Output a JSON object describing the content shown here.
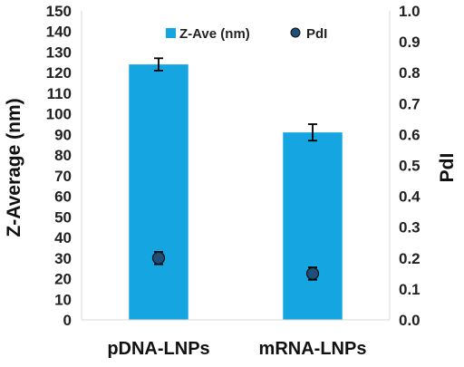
{
  "chart_data": {
    "type": "bar",
    "categories": [
      "pDNA-LNPs",
      "mRNA-LNPs"
    ],
    "series": [
      {
        "name": "Z-Ave (nm)",
        "axis": "left",
        "kind": "bar",
        "values": [
          124,
          91
        ],
        "errors": [
          3,
          4
        ],
        "color": "#15a5e1"
      },
      {
        "name": "PdI",
        "axis": "right",
        "kind": "point",
        "values": [
          0.2,
          0.15
        ],
        "errors": [
          0.02,
          0.02
        ],
        "color": "#1f4e79"
      }
    ],
    "ylabel_left": "Z-Average (nm)",
    "ylabel_right": "PdI",
    "ylim_left": [
      0,
      150
    ],
    "yticks_left": [
      "0",
      "10",
      "20",
      "30",
      "40",
      "50",
      "60",
      "70",
      "80",
      "90",
      "100",
      "110",
      "120",
      "130",
      "140",
      "150"
    ],
    "ylim_right": [
      0,
      1.0
    ],
    "yticks_right": [
      "0.0",
      "0.1",
      "0.2",
      "0.3",
      "0.4",
      "0.5",
      "0.6",
      "0.7",
      "0.8",
      "0.9",
      "1.0"
    ],
    "legend_position": "top",
    "grid": false
  }
}
